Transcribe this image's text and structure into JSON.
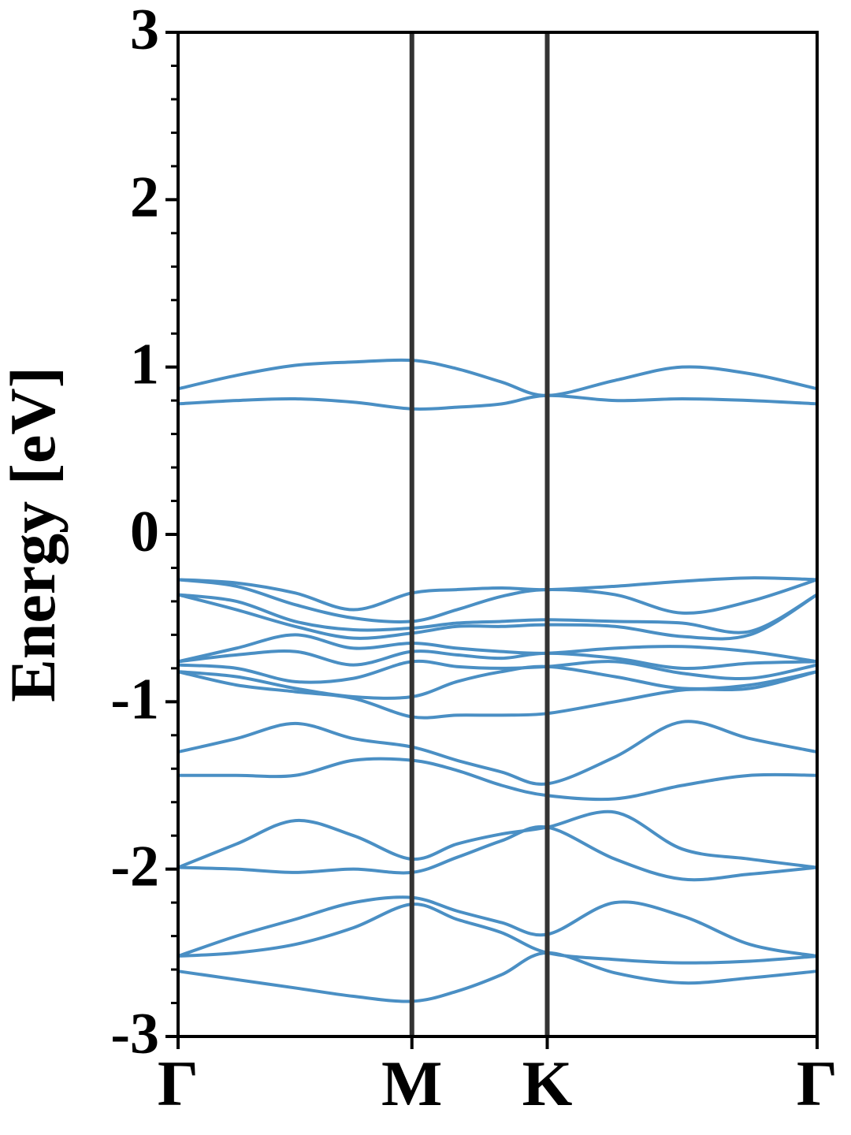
{
  "chart_data": {
    "type": "line",
    "y_label": "Energy [eV]",
    "color": "#4a8fc4",
    "x": [
      0,
      0.144,
      0.289,
      0.433,
      0.577,
      0.688,
      0.799,
      0.911,
      1.078,
      1.244,
      1.411,
      1.577
    ],
    "xlim": [
      0,
      1.577
    ],
    "xticks": [
      {
        "value": 0,
        "label": "Γ"
      },
      {
        "value": 0.577,
        "label": "M"
      },
      {
        "value": 0.911,
        "label": "K"
      },
      {
        "value": 1.577,
        "label": "Γ"
      }
    ],
    "ylim": [
      -3,
      3
    ],
    "yticks": [
      -3,
      -2,
      -1,
      0,
      1,
      2,
      3
    ],
    "yminorticks": [
      -2.8,
      -2.6,
      -2.4,
      -2.2,
      -1.8,
      -1.6,
      -1.4,
      -1.2,
      -0.8,
      -0.6,
      -0.4,
      -0.2,
      0.2,
      0.4,
      0.6,
      0.8,
      1.2,
      1.4,
      1.6,
      1.8,
      2.2,
      2.4,
      2.6,
      2.8
    ],
    "series": [
      {
        "values": [
          0.87,
          0.95,
          1.01,
          1.03,
          1.04,
          0.99,
          0.91,
          0.83,
          0.92,
          1.0,
          0.96,
          0.87
        ]
      },
      {
        "values": [
          0.78,
          0.8,
          0.81,
          0.79,
          0.75,
          0.76,
          0.78,
          0.83,
          0.8,
          0.81,
          0.8,
          0.78
        ]
      },
      {
        "values": [
          -0.27,
          -0.29,
          -0.35,
          -0.45,
          -0.35,
          -0.33,
          -0.32,
          -0.33,
          -0.31,
          -0.28,
          -0.26,
          -0.27
        ]
      },
      {
        "values": [
          -0.27,
          -0.31,
          -0.42,
          -0.5,
          -0.52,
          -0.45,
          -0.37,
          -0.33,
          -0.36,
          -0.47,
          -0.4,
          -0.27
        ]
      },
      {
        "values": [
          -0.36,
          -0.4,
          -0.52,
          -0.57,
          -0.56,
          -0.53,
          -0.52,
          -0.51,
          -0.52,
          -0.53,
          -0.58,
          -0.36
        ]
      },
      {
        "values": [
          -0.36,
          -0.45,
          -0.55,
          -0.62,
          -0.59,
          -0.55,
          -0.55,
          -0.54,
          -0.55,
          -0.61,
          -0.6,
          -0.36
        ]
      },
      {
        "values": [
          -0.76,
          -0.68,
          -0.6,
          -0.68,
          -0.65,
          -0.68,
          -0.7,
          -0.71,
          -0.68,
          -0.67,
          -0.7,
          -0.76
        ]
      },
      {
        "values": [
          -0.76,
          -0.72,
          -0.7,
          -0.78,
          -0.7,
          -0.72,
          -0.74,
          -0.71,
          -0.74,
          -0.8,
          -0.77,
          -0.76
        ]
      },
      {
        "values": [
          -0.78,
          -0.8,
          -0.88,
          -0.86,
          -0.76,
          -0.79,
          -0.8,
          -0.79,
          -0.76,
          -0.83,
          -0.86,
          -0.78
        ]
      },
      {
        "values": [
          -0.82,
          -0.85,
          -0.92,
          -0.97,
          -0.97,
          -0.88,
          -0.82,
          -0.79,
          -0.85,
          -0.92,
          -0.9,
          -0.82
        ]
      },
      {
        "values": [
          -0.82,
          -0.9,
          -0.94,
          -0.98,
          -1.09,
          -1.08,
          -1.08,
          -1.07,
          -1.0,
          -0.93,
          -0.92,
          -0.82
        ]
      },
      {
        "values": [
          -1.3,
          -1.22,
          -1.13,
          -1.22,
          -1.27,
          -1.35,
          -1.42,
          -1.49,
          -1.33,
          -1.12,
          -1.22,
          -1.3
        ]
      },
      {
        "values": [
          -1.44,
          -1.44,
          -1.44,
          -1.35,
          -1.35,
          -1.41,
          -1.5,
          -1.56,
          -1.58,
          -1.5,
          -1.44,
          -1.44
        ]
      },
      {
        "values": [
          -1.99,
          -1.85,
          -1.71,
          -1.8,
          -1.94,
          -1.85,
          -1.79,
          -1.75,
          -1.66,
          -1.88,
          -1.94,
          -1.99
        ]
      },
      {
        "values": [
          -1.99,
          -2.0,
          -2.02,
          -2.0,
          -2.02,
          -1.93,
          -1.83,
          -1.75,
          -1.94,
          -2.06,
          -2.03,
          -1.99
        ]
      },
      {
        "values": [
          -2.52,
          -2.4,
          -2.3,
          -2.2,
          -2.17,
          -2.25,
          -2.32,
          -2.39,
          -2.2,
          -2.28,
          -2.45,
          -2.52
        ]
      },
      {
        "values": [
          -2.52,
          -2.5,
          -2.45,
          -2.35,
          -2.21,
          -2.3,
          -2.38,
          -2.5,
          -2.54,
          -2.56,
          -2.55,
          -2.52
        ]
      },
      {
        "values": [
          -2.61,
          -2.66,
          -2.71,
          -2.76,
          -2.79,
          -2.73,
          -2.63,
          -2.5,
          -2.62,
          -2.68,
          -2.65,
          -2.61
        ]
      }
    ]
  }
}
